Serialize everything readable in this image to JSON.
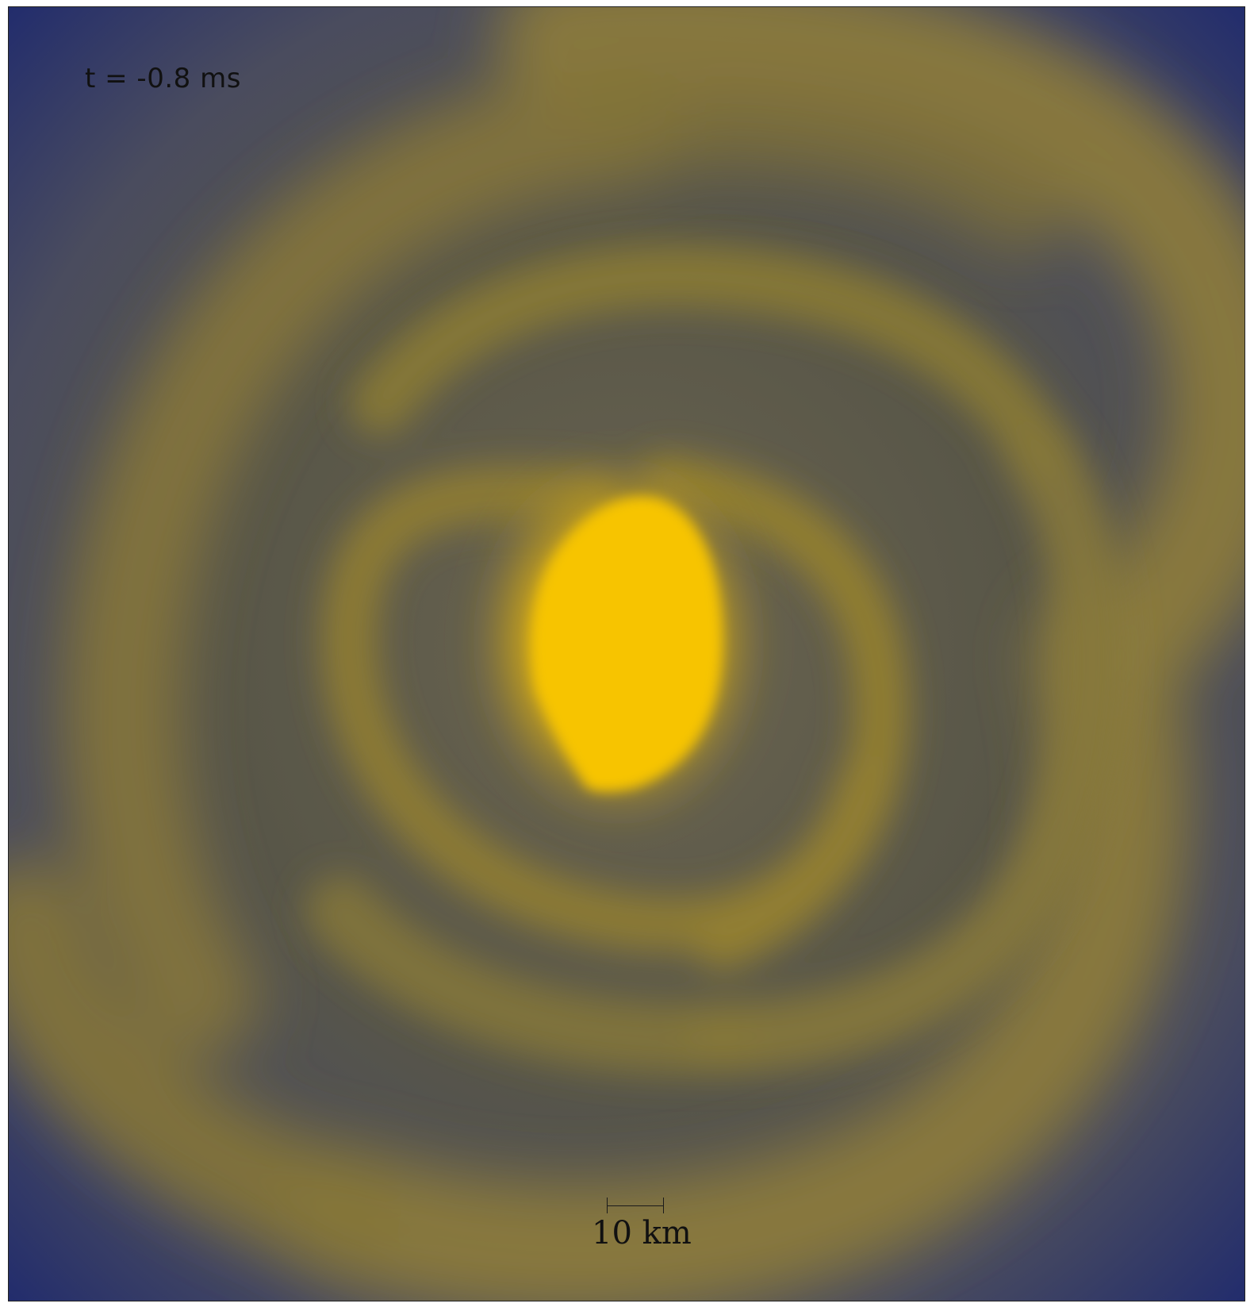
{
  "annotations": {
    "time_label": "t = -0.8 ms",
    "scale_label": "10 km"
  },
  "colors": {
    "background_deep": "#1f2a6e",
    "background_mid": "#4e5060",
    "spiral_arm": "#8a7a3c",
    "core": "#f7c400"
  }
}
